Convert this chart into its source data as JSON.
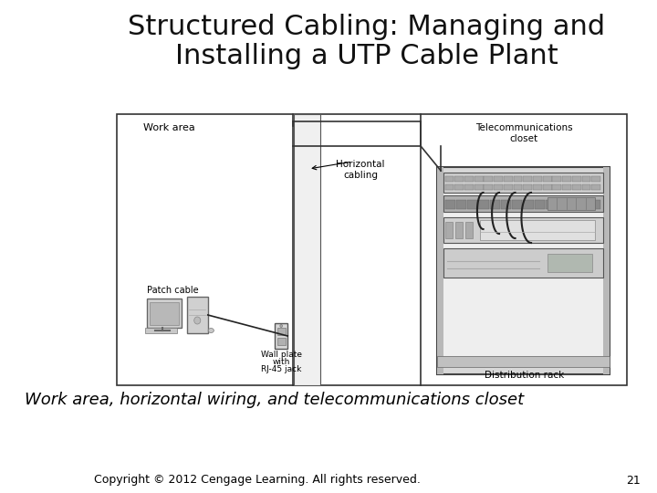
{
  "title_line1": "Structured Cabling: Managing and",
  "title_line2": "Installing a UTP Cable Plant",
  "title_fontsize": 22,
  "title_color": "#111111",
  "caption": "Work area, horizontal wiring, and telecommunications closet",
  "caption_fontsize": 13,
  "copyright_text": "Copyright © 2012 Cengage Learning. All rights reserved.",
  "copyright_page": "21",
  "copyright_fontsize": 9,
  "background_color": "#ffffff",
  "left_area_label": "Work area",
  "horiz_label_line1": "Horizontal",
  "horiz_label_line2": "cabling",
  "telecom_label_line1": "Telecommunications",
  "telecom_label_line2": "closet",
  "patch_cable_label": "Patch cable",
  "wall_plate_label_line1": "Wall plate",
  "wall_plate_label_line2": "with",
  "wall_plate_label_line3": "RJ-45 jack",
  "dist_rack_label": "Distribution rack"
}
